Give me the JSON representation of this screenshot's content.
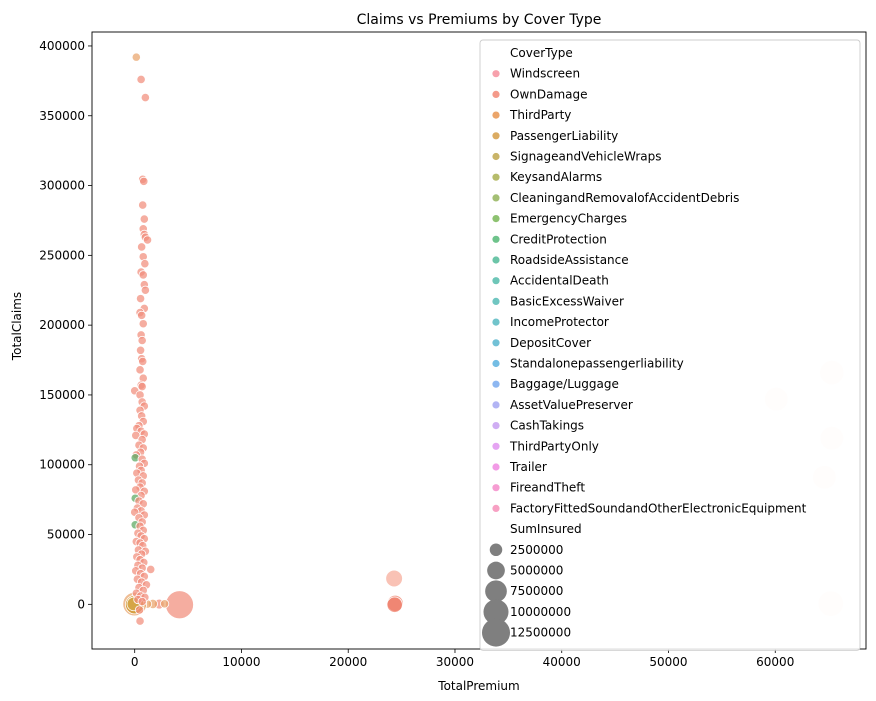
{
  "chart_data": {
    "type": "scatter",
    "title": "Claims vs Premiums by Cover Type",
    "xlabel": "TotalPremium",
    "ylabel": "TotalClaims",
    "xlim": [
      -4000,
      68500
    ],
    "ylim": [
      -32000,
      410000
    ],
    "xticks": [
      0,
      10000,
      20000,
      30000,
      40000,
      50000,
      60000
    ],
    "yticks": [
      0,
      50000,
      100000,
      150000,
      200000,
      250000,
      300000,
      350000,
      400000
    ],
    "grid": false,
    "legend_position": "top-right",
    "hue_title": "CoverType",
    "size_title": "SumInsured",
    "categories": [
      {
        "name": "Windscreen",
        "color": "#f7a1ac"
      },
      {
        "name": "OwnDamage",
        "color": "#f49a8a"
      },
      {
        "name": "ThirdParty",
        "color": "#eba56a"
      },
      {
        "name": "PassengerLiability",
        "color": "#dbab62"
      },
      {
        "name": "SignageandVehicleWraps",
        "color": "#c9b468"
      },
      {
        "name": "KeysandAlarms",
        "color": "#b6bc6b"
      },
      {
        "name": "CleaningandRemovalofAccidentDebris",
        "color": "#a4bf74"
      },
      {
        "name": "EmergencyCharges",
        "color": "#8dc270"
      },
      {
        "name": "CreditProtection",
        "color": "#6ec38b"
      },
      {
        "name": "RoadsideAssistance",
        "color": "#6cc5a8"
      },
      {
        "name": "AccidentalDeath",
        "color": "#6ec6b8"
      },
      {
        "name": "BasicExcessWaiver",
        "color": "#70c6c1"
      },
      {
        "name": "IncomeProtector",
        "color": "#71c4cb"
      },
      {
        "name": "DepositCover",
        "color": "#72c1d6"
      },
      {
        "name": "Standalonepassengerliability",
        "color": "#74bde4"
      },
      {
        "name": "Baggage/Luggage",
        "color": "#8db7f1"
      },
      {
        "name": "AssetValuePreserver",
        "color": "#b2b4f4"
      },
      {
        "name": "CashTakings",
        "color": "#cfadf3"
      },
      {
        "name": "ThirdPartyOnly",
        "color": "#e5a4f2"
      },
      {
        "name": "Trailer",
        "color": "#f29be6"
      },
      {
        "name": "FireandTheft",
        "color": "#f69dd2"
      },
      {
        "name": "FactoryFittedSoundandOtherElectronicEquipment",
        "color": "#f7a0c3"
      }
    ],
    "size_legend": [
      2500000,
      5000000,
      7500000,
      10000000,
      12500000
    ],
    "points": [
      {
        "x": 60100,
        "y": 147000,
        "s": 9000000,
        "c": "#fde7e0"
      },
      {
        "x": 65300,
        "y": 166000,
        "s": 9500000,
        "c": "#fde7e0"
      },
      {
        "x": 65300,
        "y": 119000,
        "s": 9000000,
        "c": "#fde7e0"
      },
      {
        "x": 64600,
        "y": 91000,
        "s": 9000000,
        "c": "#fde7e0"
      },
      {
        "x": 65200,
        "y": 500,
        "s": 10500000,
        "c": "#fde7e0"
      },
      {
        "x": 24300,
        "y": 18500,
        "s": 4500000,
        "c": "#f7aa98"
      },
      {
        "x": 24400,
        "y": 700,
        "s": 4200000,
        "c": "#f07f6a"
      },
      {
        "x": 24350,
        "y": -300,
        "s": 3800000,
        "c": "#ee7b66"
      },
      {
        "x": 4200,
        "y": -300,
        "s": 12500000,
        "c": "#f18e7b"
      },
      {
        "x": 2300,
        "y": 200,
        "s": 1600000,
        "c": "#f18e7b"
      },
      {
        "x": 1700,
        "y": 300,
        "s": 1400000,
        "c": "#e9a46b"
      },
      {
        "x": 2800,
        "y": 400,
        "s": 900000,
        "c": "#e9a46b"
      },
      {
        "x": 1200,
        "y": 200,
        "s": 1100000,
        "c": "#e9a46b"
      },
      {
        "x": 0,
        "y": 200,
        "s": 9000000,
        "c": "#e9a46b"
      },
      {
        "x": 0,
        "y": -200,
        "s": 5500000,
        "c": "#cc9322"
      },
      {
        "x": -80,
        "y": 300,
        "s": 3000000,
        "c": "#d4a84a"
      },
      {
        "x": 150,
        "y": 392000,
        "s": 900000,
        "c": "#e9a46b"
      },
      {
        "x": 600,
        "y": 376000,
        "s": 900000,
        "c": "#f18e7b"
      },
      {
        "x": 1000,
        "y": 363000,
        "s": 900000,
        "c": "#f18e7b"
      },
      {
        "x": 750,
        "y": 304500,
        "s": 900000,
        "c": "#f18e7b"
      },
      {
        "x": 850,
        "y": 303000,
        "s": 900000,
        "c": "#f18e7b"
      },
      {
        "x": 750,
        "y": 286000,
        "s": 900000,
        "c": "#f18e7b"
      },
      {
        "x": 900,
        "y": 276000,
        "s": 900000,
        "c": "#f18e7b"
      },
      {
        "x": 800,
        "y": 269000,
        "s": 900000,
        "c": "#f18e7b"
      },
      {
        "x": 900,
        "y": 265000,
        "s": 900000,
        "c": "#f18e7b"
      },
      {
        "x": 1000,
        "y": 263000,
        "s": 900000,
        "c": "#f18e7b"
      },
      {
        "x": 1200,
        "y": 261000,
        "s": 900000,
        "c": "#f18e7b"
      },
      {
        "x": 650,
        "y": 256000,
        "s": 900000,
        "c": "#f18e7b"
      },
      {
        "x": 800,
        "y": 249000,
        "s": 900000,
        "c": "#f18e7b"
      },
      {
        "x": 950,
        "y": 244000,
        "s": 900000,
        "c": "#f18e7b"
      },
      {
        "x": 600,
        "y": 238000,
        "s": 900000,
        "c": "#f18e7b"
      },
      {
        "x": 800,
        "y": 236000,
        "s": 900000,
        "c": "#f18e7b"
      },
      {
        "x": 900,
        "y": 229000,
        "s": 900000,
        "c": "#f18e7b"
      },
      {
        "x": 1000,
        "y": 225000,
        "s": 900000,
        "c": "#f18e7b"
      },
      {
        "x": 550,
        "y": 219000,
        "s": 900000,
        "c": "#f18e7b"
      },
      {
        "x": 900,
        "y": 212000,
        "s": 900000,
        "c": "#f18e7b"
      },
      {
        "x": 500,
        "y": 209000,
        "s": 900000,
        "c": "#f18e7b"
      },
      {
        "x": 650,
        "y": 207000,
        "s": 900000,
        "c": "#f18e7b"
      },
      {
        "x": 800,
        "y": 201000,
        "s": 900000,
        "c": "#f18e7b"
      },
      {
        "x": 600,
        "y": 193000,
        "s": 900000,
        "c": "#f18e7b"
      },
      {
        "x": 700,
        "y": 189000,
        "s": 900000,
        "c": "#f18e7b"
      },
      {
        "x": 550,
        "y": 182000,
        "s": 900000,
        "c": "#f18e7b"
      },
      {
        "x": 650,
        "y": 176000,
        "s": 900000,
        "c": "#f18e7b"
      },
      {
        "x": 750,
        "y": 174000,
        "s": 900000,
        "c": "#f18e7b"
      },
      {
        "x": 500,
        "y": 168000,
        "s": 900000,
        "c": "#f18e7b"
      },
      {
        "x": 800,
        "y": 162000,
        "s": 900000,
        "c": "#f18e7b"
      },
      {
        "x": 600,
        "y": 157000,
        "s": 900000,
        "c": "#f18e7b"
      },
      {
        "x": 700,
        "y": 156000,
        "s": 900000,
        "c": "#f18e7b"
      },
      {
        "x": 0,
        "y": 153000,
        "s": 900000,
        "c": "#f18e7b"
      },
      {
        "x": 500,
        "y": 150000,
        "s": 900000,
        "c": "#f18e7b"
      },
      {
        "x": 700,
        "y": 145000,
        "s": 900000,
        "c": "#f18e7b"
      },
      {
        "x": 900,
        "y": 142000,
        "s": 900000,
        "c": "#f18e7b"
      },
      {
        "x": 500,
        "y": 139000,
        "s": 900000,
        "c": "#f18e7b"
      },
      {
        "x": 650,
        "y": 135000,
        "s": 900000,
        "c": "#f18e7b"
      },
      {
        "x": 800,
        "y": 131000,
        "s": 900000,
        "c": "#f18e7b"
      },
      {
        "x": 400,
        "y": 128000,
        "s": 900000,
        "c": "#f18e7b"
      },
      {
        "x": 200,
        "y": 126000,
        "s": 900000,
        "c": "#f18e7b"
      },
      {
        "x": 600,
        "y": 124000,
        "s": 900000,
        "c": "#f18e7b"
      },
      {
        "x": 900,
        "y": 122000,
        "s": 900000,
        "c": "#f18e7b"
      },
      {
        "x": 100,
        "y": 121000,
        "s": 900000,
        "c": "#f18e7b"
      },
      {
        "x": 700,
        "y": 118000,
        "s": 900000,
        "c": "#f18e7b"
      },
      {
        "x": 400,
        "y": 114000,
        "s": 900000,
        "c": "#f18e7b"
      },
      {
        "x": 800,
        "y": 112000,
        "s": 900000,
        "c": "#f18e7b"
      },
      {
        "x": 550,
        "y": 109000,
        "s": 900000,
        "c": "#f18e7b"
      },
      {
        "x": 150,
        "y": 107000,
        "s": 900000,
        "c": "#f18e7b"
      },
      {
        "x": 50,
        "y": 105000,
        "s": 900000,
        "c": "#5aa860"
      },
      {
        "x": 700,
        "y": 104000,
        "s": 900000,
        "c": "#f18e7b"
      },
      {
        "x": 900,
        "y": 101000,
        "s": 900000,
        "c": "#f18e7b"
      },
      {
        "x": 450,
        "y": 99000,
        "s": 900000,
        "c": "#f18e7b"
      },
      {
        "x": 600,
        "y": 96000,
        "s": 900000,
        "c": "#f18e7b"
      },
      {
        "x": 200,
        "y": 94000,
        "s": 900000,
        "c": "#f18e7b"
      },
      {
        "x": 800,
        "y": 92000,
        "s": 900000,
        "c": "#f18e7b"
      },
      {
        "x": 350,
        "y": 89000,
        "s": 900000,
        "c": "#f18e7b"
      },
      {
        "x": 700,
        "y": 87000,
        "s": 900000,
        "c": "#f18e7b"
      },
      {
        "x": 500,
        "y": 84000,
        "s": 900000,
        "c": "#f18e7b"
      },
      {
        "x": 100,
        "y": 82000,
        "s": 900000,
        "c": "#f18e7b"
      },
      {
        "x": 900,
        "y": 81000,
        "s": 900000,
        "c": "#f18e7b"
      },
      {
        "x": 600,
        "y": 78000,
        "s": 900000,
        "c": "#f18e7b"
      },
      {
        "x": 50,
        "y": 76000,
        "s": 900000,
        "c": "#5aa860"
      },
      {
        "x": 400,
        "y": 74000,
        "s": 900000,
        "c": "#f18e7b"
      },
      {
        "x": 800,
        "y": 72000,
        "s": 900000,
        "c": "#f18e7b"
      },
      {
        "x": 250,
        "y": 69000,
        "s": 900000,
        "c": "#f18e7b"
      },
      {
        "x": 600,
        "y": 67000,
        "s": 900000,
        "c": "#f18e7b"
      },
      {
        "x": 0,
        "y": 66000,
        "s": 900000,
        "c": "#f18e7b"
      },
      {
        "x": 900,
        "y": 64000,
        "s": 900000,
        "c": "#f18e7b"
      },
      {
        "x": 400,
        "y": 62000,
        "s": 900000,
        "c": "#f18e7b"
      },
      {
        "x": 700,
        "y": 59000,
        "s": 900000,
        "c": "#f18e7b"
      },
      {
        "x": 50,
        "y": 57000,
        "s": 900000,
        "c": "#5aa860"
      },
      {
        "x": 500,
        "y": 56000,
        "s": 900000,
        "c": "#f18e7b"
      },
      {
        "x": 800,
        "y": 53000,
        "s": 900000,
        "c": "#f18e7b"
      },
      {
        "x": 300,
        "y": 51000,
        "s": 900000,
        "c": "#f18e7b"
      },
      {
        "x": 600,
        "y": 49000,
        "s": 900000,
        "c": "#f18e7b"
      },
      {
        "x": 900,
        "y": 47000,
        "s": 900000,
        "c": "#f18e7b"
      },
      {
        "x": 150,
        "y": 45000,
        "s": 900000,
        "c": "#f18e7b"
      },
      {
        "x": 500,
        "y": 44000,
        "s": 900000,
        "c": "#f18e7b"
      },
      {
        "x": 750,
        "y": 42000,
        "s": 900000,
        "c": "#f18e7b"
      },
      {
        "x": 350,
        "y": 39000,
        "s": 900000,
        "c": "#f18e7b"
      },
      {
        "x": 1000,
        "y": 38000,
        "s": 900000,
        "c": "#f18e7b"
      },
      {
        "x": 650,
        "y": 36000,
        "s": 900000,
        "c": "#f18e7b"
      },
      {
        "x": 200,
        "y": 34000,
        "s": 900000,
        "c": "#f18e7b"
      },
      {
        "x": 500,
        "y": 32000,
        "s": 900000,
        "c": "#f18e7b"
      },
      {
        "x": 850,
        "y": 30000,
        "s": 900000,
        "c": "#f18e7b"
      },
      {
        "x": 300,
        "y": 28000,
        "s": 900000,
        "c": "#f18e7b"
      },
      {
        "x": 700,
        "y": 26000,
        "s": 900000,
        "c": "#f18e7b"
      },
      {
        "x": 1500,
        "y": 25000,
        "s": 900000,
        "c": "#f18e7b"
      },
      {
        "x": 100,
        "y": 24000,
        "s": 900000,
        "c": "#f18e7b"
      },
      {
        "x": 550,
        "y": 22000,
        "s": 900000,
        "c": "#f18e7b"
      },
      {
        "x": 900,
        "y": 20000,
        "s": 900000,
        "c": "#f18e7b"
      },
      {
        "x": 250,
        "y": 18000,
        "s": 900000,
        "c": "#f18e7b"
      },
      {
        "x": 650,
        "y": 16000,
        "s": 900000,
        "c": "#f18e7b"
      },
      {
        "x": 1100,
        "y": 14000,
        "s": 900000,
        "c": "#f18e7b"
      },
      {
        "x": 400,
        "y": 12000,
        "s": 900000,
        "c": "#f18e7b"
      },
      {
        "x": 800,
        "y": 10000,
        "s": 900000,
        "c": "#f18e7b"
      },
      {
        "x": 150,
        "y": 8000,
        "s": 900000,
        "c": "#f18e7b"
      },
      {
        "x": 550,
        "y": 6000,
        "s": 900000,
        "c": "#f18e7b"
      },
      {
        "x": 950,
        "y": 5000,
        "s": 900000,
        "c": "#f18e7b"
      },
      {
        "x": 300,
        "y": 3500,
        "s": 900000,
        "c": "#f18e7b"
      },
      {
        "x": 700,
        "y": 2000,
        "s": 900000,
        "c": "#f18e7b"
      },
      {
        "x": 450,
        "y": -4000,
        "s": 900000,
        "c": "#f18e7b"
      },
      {
        "x": 500,
        "y": -12000,
        "s": 900000,
        "c": "#f18e7b"
      }
    ]
  }
}
